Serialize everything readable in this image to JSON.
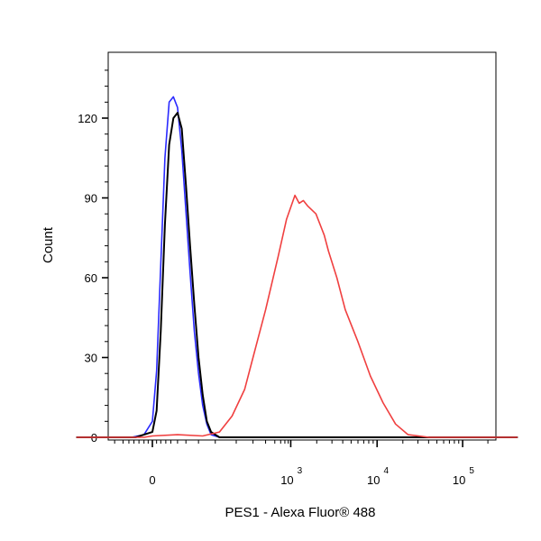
{
  "chart_data": {
    "type": "line",
    "xlabel": "PES1 - Alexa Fluor® 488",
    "ylabel": "Count",
    "x_scale": "biexponential",
    "x_tick_labels": [
      {
        "base": "0",
        "exp": ""
      },
      {
        "base": "10",
        "exp": "3"
      },
      {
        "base": "10",
        "exp": "4"
      },
      {
        "base": "10",
        "exp": "5"
      }
    ],
    "y_ticks": [
      0,
      30,
      60,
      90,
      120
    ],
    "ylim": [
      0,
      140
    ],
    "grid": false,
    "colors": {
      "blue": "#2a2aff",
      "black": "#000000",
      "red": "#f04040"
    },
    "series": [
      {
        "color": "#2a2aff",
        "points": [
          [
            -0.9,
            0
          ],
          [
            -0.25,
            0
          ],
          [
            -0.1,
            1
          ],
          [
            0.0,
            6
          ],
          [
            0.05,
            25
          ],
          [
            0.1,
            65
          ],
          [
            0.15,
            105
          ],
          [
            0.2,
            126
          ],
          [
            0.25,
            128
          ],
          [
            0.3,
            124
          ],
          [
            0.35,
            108
          ],
          [
            0.4,
            85
          ],
          [
            0.45,
            62
          ],
          [
            0.5,
            40
          ],
          [
            0.55,
            24
          ],
          [
            0.6,
            12
          ],
          [
            0.65,
            5
          ],
          [
            0.7,
            1
          ],
          [
            0.8,
            0
          ],
          [
            4.35,
            0
          ]
        ]
      },
      {
        "color": "#000000",
        "points": [
          [
            -0.9,
            0
          ],
          [
            -0.2,
            0
          ],
          [
            0.0,
            2
          ],
          [
            0.05,
            10
          ],
          [
            0.1,
            40
          ],
          [
            0.15,
            80
          ],
          [
            0.2,
            110
          ],
          [
            0.25,
            120
          ],
          [
            0.3,
            122
          ],
          [
            0.35,
            116
          ],
          [
            0.4,
            95
          ],
          [
            0.45,
            72
          ],
          [
            0.5,
            50
          ],
          [
            0.55,
            30
          ],
          [
            0.6,
            16
          ],
          [
            0.65,
            6
          ],
          [
            0.7,
            2
          ],
          [
            0.8,
            0
          ],
          [
            4.35,
            0
          ]
        ]
      },
      {
        "color": "#f04040",
        "points": [
          [
            -0.9,
            0
          ],
          [
            -0.1,
            0
          ],
          [
            0.0,
            0.5
          ],
          [
            0.3,
            1
          ],
          [
            0.6,
            0.5
          ],
          [
            0.8,
            2
          ],
          [
            0.95,
            8
          ],
          [
            1.1,
            18
          ],
          [
            1.2,
            30
          ],
          [
            1.35,
            48
          ],
          [
            1.5,
            68
          ],
          [
            1.6,
            82
          ],
          [
            1.7,
            91
          ],
          [
            1.75,
            88
          ],
          [
            1.8,
            89
          ],
          [
            1.85,
            87
          ],
          [
            1.95,
            84
          ],
          [
            2.05,
            76
          ],
          [
            2.1,
            70
          ],
          [
            2.2,
            60
          ],
          [
            2.3,
            48
          ],
          [
            2.45,
            36
          ],
          [
            2.6,
            23
          ],
          [
            2.75,
            13
          ],
          [
            2.9,
            5
          ],
          [
            3.05,
            1
          ],
          [
            3.3,
            0
          ],
          [
            4.35,
            0
          ]
        ]
      }
    ]
  }
}
